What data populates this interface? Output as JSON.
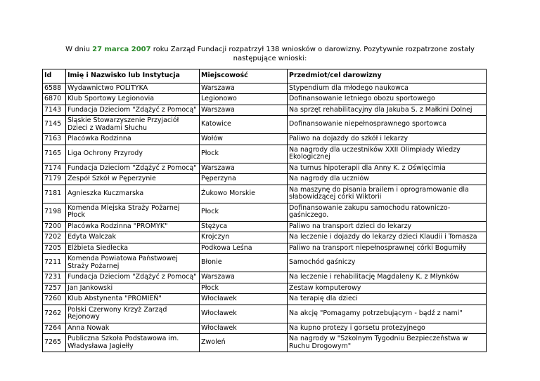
{
  "intro": {
    "before": "W dniu ",
    "date": "27 marca 2007",
    "after": " roku Zarząd Fundacji rozpatrzył 138 wniosków o darowizny. Pozytywnie rozpatrzone zostały następujące wnioski:"
  },
  "table": {
    "header": [
      "Id",
      "Imię i Nazwisko lub Instytucja",
      "Miejscowość",
      "Przedmiot/cel darowizny"
    ],
    "rows": [
      [
        "6588",
        "Wydawnictwo POLITYKA",
        "Warszawa",
        "Stypendium dla młodego naukowca"
      ],
      [
        "6870",
        "Klub Sportowy Legionovia",
        "Legionowo",
        "Dofinansowanie letniego obozu sportowego"
      ],
      [
        "7143",
        "Fundacja Dzieciom \"Zdążyć z Pomocą\"",
        "Warszawa",
        "Na sprzęt rehabilitacyjny dla Jakuba S. z Małkini Dolnej"
      ],
      [
        "7145",
        "Śląskie Stowarzyszenie Przyjaciół Dzieci z Wadami Słuchu",
        "Katowice",
        "Dofinansowanie niepełnosprawnego sportowca"
      ],
      [
        "7163",
        "Placówka Rodzinna",
        "Wołów",
        "Paliwo na dojazdy do szkół i lekarzy"
      ],
      [
        "7165",
        "Liga Ochrony Przyrody",
        "Płock",
        "Na nagrody dla uczestników XXII Olimpiady Wiedzy Ekologicznej"
      ],
      [
        "7174",
        "Fundacja Dzieciom \"Zdążyć z Pomocą\"",
        "Warszawa",
        "Na turnus hipoterapii dla Anny K. z Oświęcimia"
      ],
      [
        "7179",
        "Zespół Szkół w Pęperzynie",
        "Pęperzyna",
        "Na nagrody dla uczniów"
      ],
      [
        "7181",
        "Agnieszka Kuczmarska",
        "Żukowo Morskie",
        "Na maszynę do pisania brailem i oprogramowanie dla słabowidzącej córki Wiktorii"
      ],
      [
        "7198",
        "Komenda Miejska Straży Pożarnej Płock",
        "Płock",
        "Dofinansowanie zakupu samochodu ratowniczo-gaśniczego."
      ],
      [
        "7200",
        "Placówka Rodzinna \"PROMYK\"",
        "Stężyca",
        "Paliwo na transport dzieci do lekarzy"
      ],
      [
        "7202",
        "Edyta Walczak",
        "Krojczyn",
        "Na leczenie i dojazdy do lekarzy dzieci Klaudii i Tomasza"
      ],
      [
        "7205",
        "Elżbieta Siedlecka",
        "Podkowa Leśna",
        "Paliwo na transport niepełnosprawnej córki Bogumiły"
      ],
      [
        "7211",
        "Komenda Powiatowa Państwowej Straży Pożarnej",
        "Błonie",
        "Samochód gaśniczy"
      ],
      [
        "7231",
        "Fundacja Dzieciom \"Zdążyć z Pomocą\"",
        "Warszawa",
        "Na leczenie i rehabilitację Magdaleny K. z Młynków"
      ],
      [
        "7257",
        "Jan Jankowski",
        "Płock",
        "Zestaw komputerowy"
      ],
      [
        "7260",
        "Klub Abstynenta \"PROMIEŃ\"",
        "Włocławek",
        "Na terapię dla dzieci"
      ],
      [
        "7262",
        "Polski Czerwony Krzyż Zarząd Rejonowy",
        "Włocławek",
        "Na akcję \"Pomagamy potrzebującym - bądź z nami\""
      ],
      [
        "7264",
        "Anna Nowak",
        "Włocławek",
        "Na kupno protezy i gorsetu protezyjnego"
      ],
      [
        "7265",
        "Publiczna Szkoła Podstawowa im. Władysława Jagiełły",
        "Zwoleń",
        "Na nagrody w \"Szkolnym Tygodniu Bezpieczeństwa w Ruchu Drogowym\""
      ]
    ]
  }
}
